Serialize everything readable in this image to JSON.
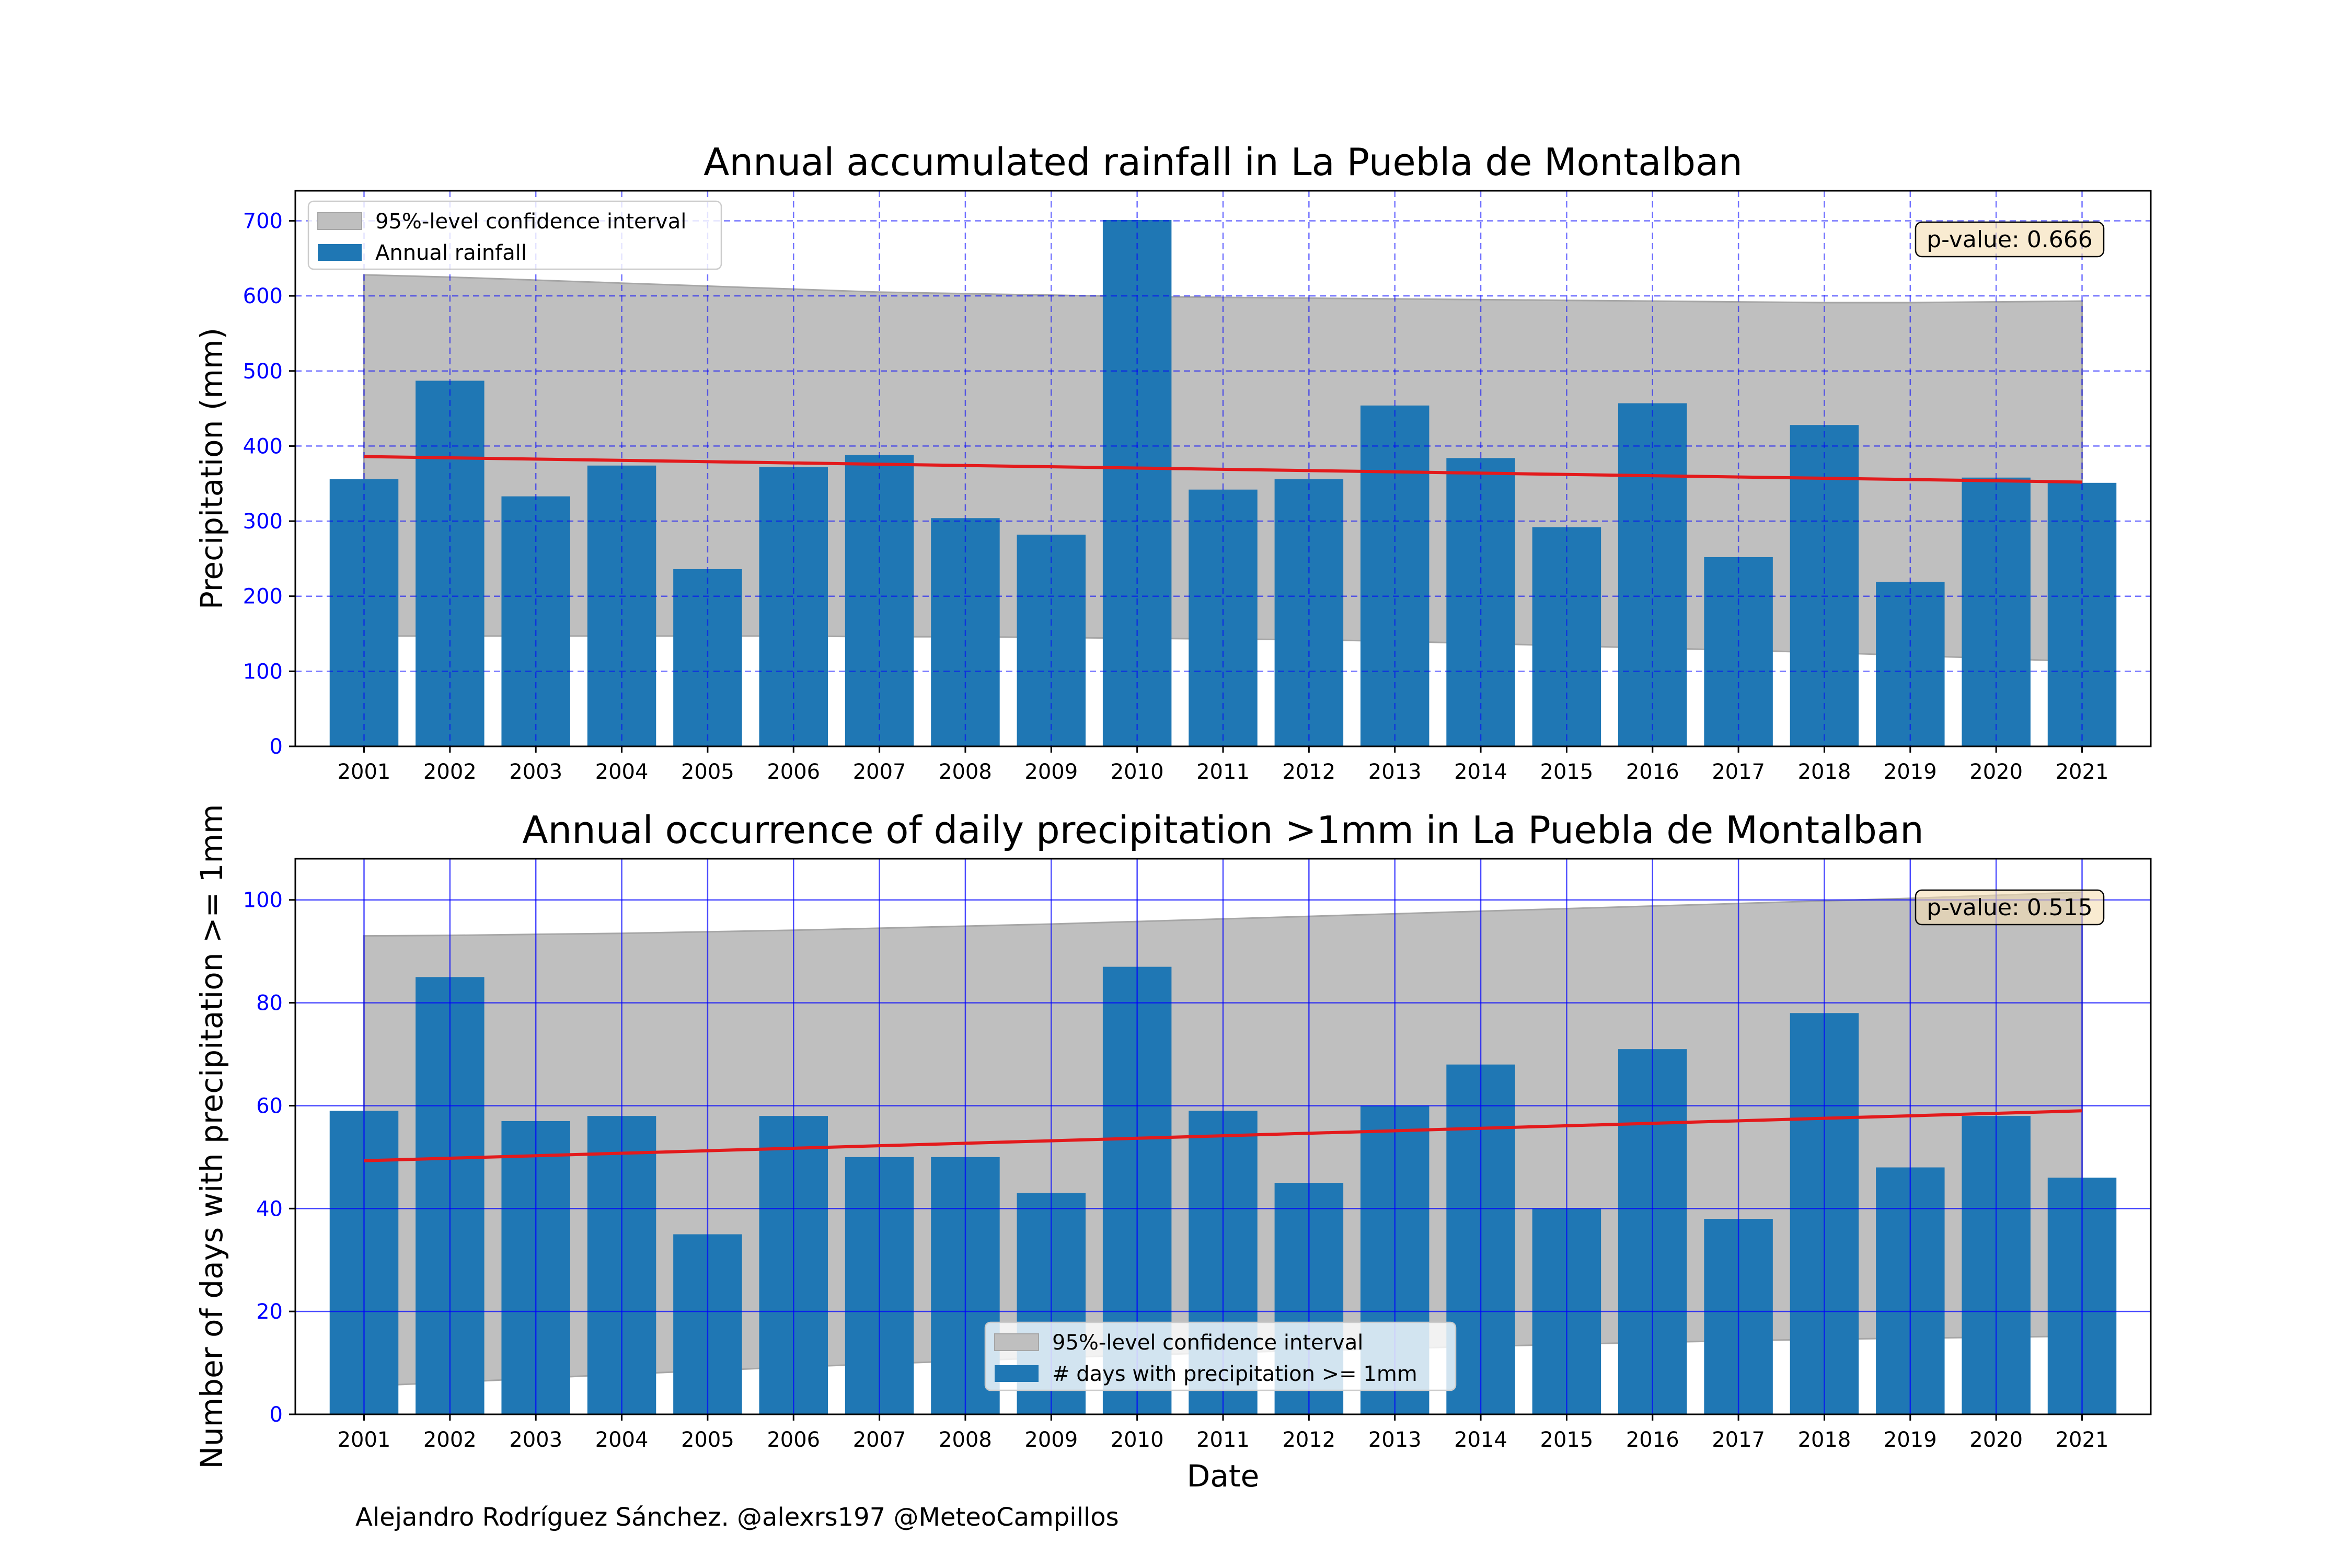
{
  "credit": "Alejandro Rodríguez Sánchez. @alexrs197 @MeteoCampillos",
  "colors": {
    "bar": "#1f77b4",
    "trend": "#e31a1c",
    "band": "#bfbfbf",
    "grid": "#0000ff",
    "tick_label": "#0000ff",
    "pbox_fill": "#f5deb3"
  },
  "chart_data": [
    {
      "type": "bar",
      "title": "Annual accumulated rainfall in La Puebla de Montalban",
      "xlabel": "",
      "ylabel": "Precipitation (mm)",
      "categories": [
        "2001",
        "2002",
        "2003",
        "2004",
        "2005",
        "2006",
        "2007",
        "2008",
        "2009",
        "2010",
        "2011",
        "2012",
        "2013",
        "2014",
        "2015",
        "2016",
        "2017",
        "2018",
        "2019",
        "2020",
        "2021"
      ],
      "series": [
        {
          "name": "Annual rainfall",
          "values": [
            356,
            487,
            333,
            374,
            236,
            372,
            388,
            304,
            282,
            701,
            342,
            356,
            454,
            384,
            292,
            457,
            252,
            428,
            219,
            358,
            351
          ]
        }
      ],
      "trend": {
        "start": 386,
        "end": 352
      },
      "confidence_band": {
        "name": "95%-level confidence interval",
        "upper": [
          628,
          625,
          621,
          617,
          613,
          609,
          605,
          603,
          601,
          599,
          598,
          597,
          596,
          595,
          594,
          593,
          592,
          591,
          591,
          592,
          593
        ],
        "lower": [
          147,
          147,
          147,
          147,
          147,
          147,
          146,
          146,
          145,
          144,
          143,
          142,
          140,
          137,
          134,
          131,
          128,
          125,
          121,
          117,
          113
        ]
      },
      "ylim": [
        0,
        740
      ],
      "yticks": [
        0,
        100,
        200,
        300,
        400,
        500,
        600,
        700
      ],
      "grid": true,
      "grid_style": "dashed",
      "legend_position": "top-left",
      "annotation": "p-value: 0.666"
    },
    {
      "type": "bar",
      "title": "Annual occurrence of daily precipitation >1mm in La Puebla de Montalban",
      "xlabel": "Date",
      "ylabel": "Number of days with precipitation >= 1mm",
      "categories": [
        "2001",
        "2002",
        "2003",
        "2004",
        "2005",
        "2006",
        "2007",
        "2008",
        "2009",
        "2010",
        "2011",
        "2012",
        "2013",
        "2014",
        "2015",
        "2016",
        "2017",
        "2018",
        "2019",
        "2020",
        "2021"
      ],
      "series": [
        {
          "name": "# days with precipitation >= 1mm",
          "values": [
            59,
            85,
            57,
            58,
            35,
            58,
            50,
            50,
            43,
            87,
            59,
            45,
            60,
            68,
            40,
            71,
            38,
            78,
            48,
            58,
            46
          ]
        }
      ],
      "trend": {
        "start": 49.3,
        "end": 59
      },
      "confidence_band": {
        "name": "95%-level confidence interval",
        "upper": [
          93,
          93.1,
          93.3,
          93.5,
          93.8,
          94.1,
          94.5,
          94.9,
          95.3,
          95.8,
          96.3,
          96.8,
          97.3,
          97.8,
          98.3,
          98.8,
          99.3,
          99.8,
          100.3,
          100.9,
          101.5
        ],
        "lower": [
          5.5,
          6.2,
          7.0,
          7.8,
          8.5,
          9.2,
          9.8,
          10.4,
          11.0,
          11.5,
          12.0,
          12.4,
          12.8,
          13.2,
          13.6,
          14.0,
          14.3,
          14.6,
          14.8,
          15.0,
          15.2
        ]
      },
      "ylim": [
        0,
        108
      ],
      "yticks": [
        0,
        20,
        40,
        60,
        80,
        100
      ],
      "grid": true,
      "grid_style": "solid",
      "legend_position": "bottom-center",
      "annotation": "p-value: 0.515"
    }
  ]
}
